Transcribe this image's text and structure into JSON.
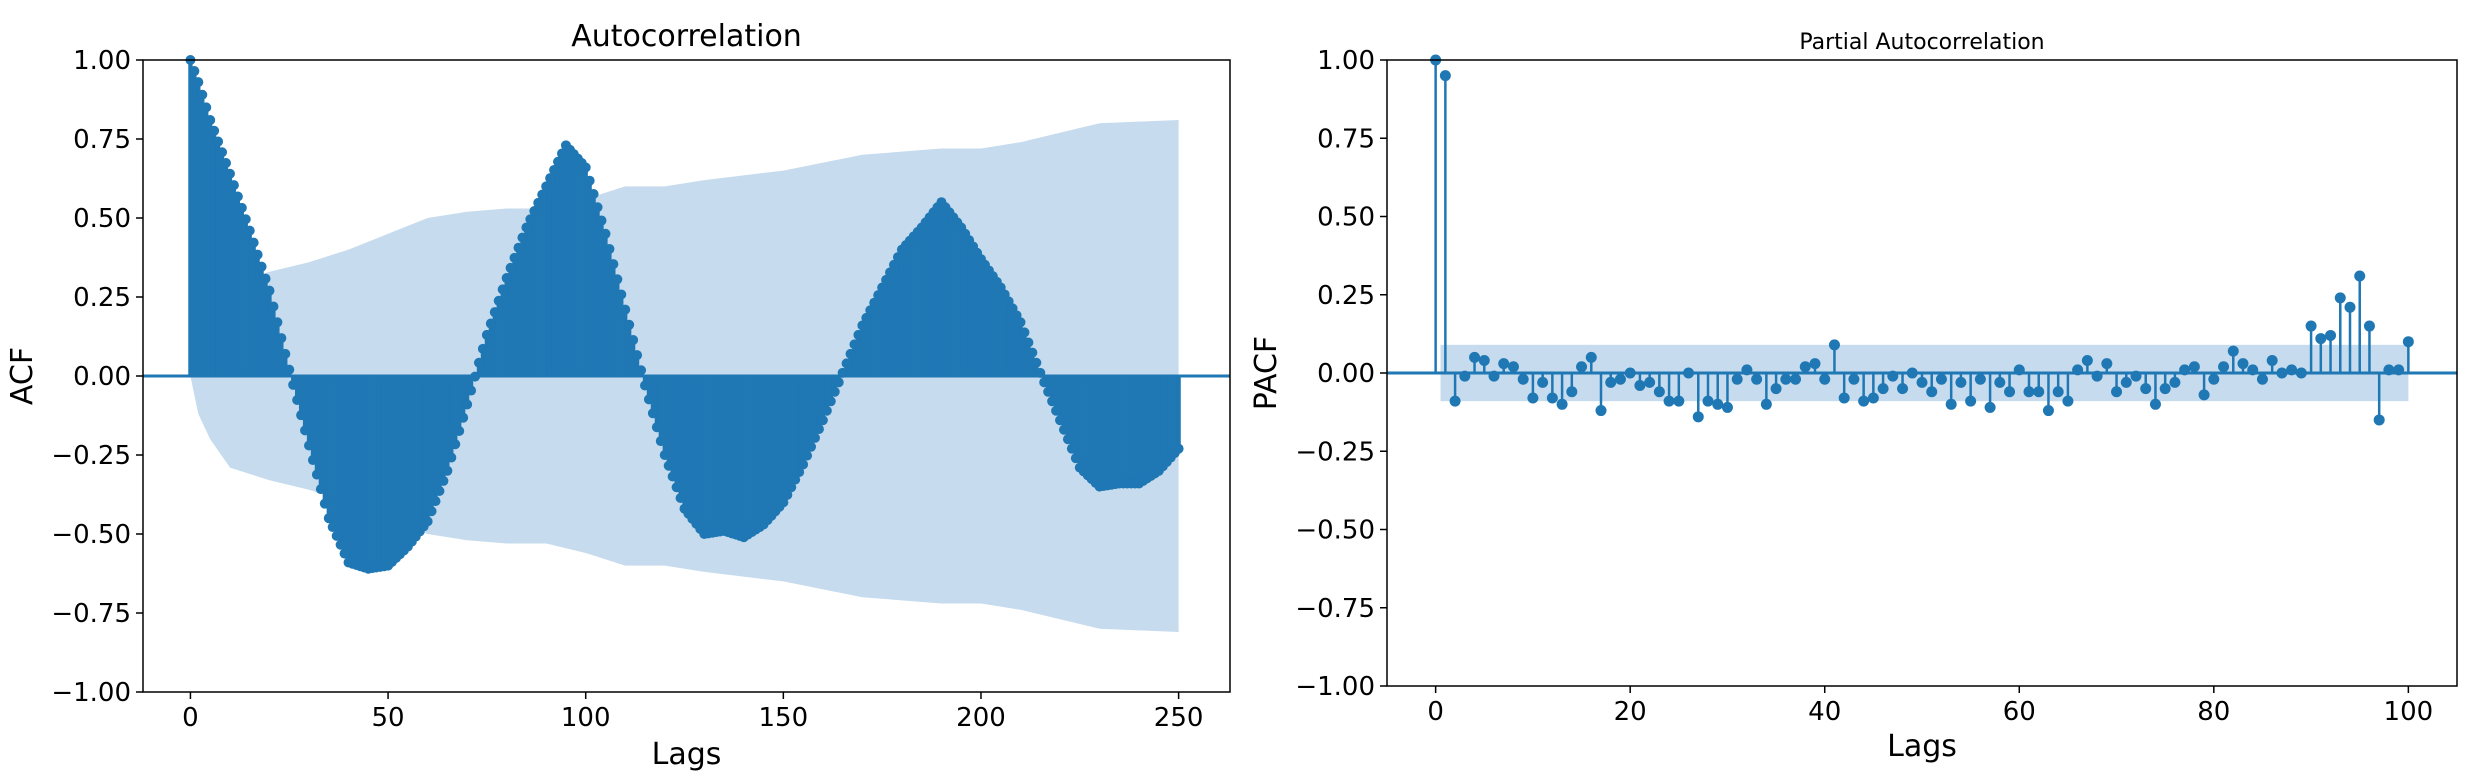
{
  "colors": {
    "primary": "#1f77b4",
    "confidence_band": "#c6dbed",
    "axes": "#000000",
    "background": "#ffffff"
  },
  "chart_data": [
    {
      "type": "stem",
      "title": "Autocorrelation",
      "xlabel": "Lags",
      "ylabel": "ACF",
      "xlim": [
        -12,
        263
      ],
      "ylim": [
        -1.0,
        1.0
      ],
      "x_ticks": [
        0,
        50,
        100,
        150,
        200,
        250
      ],
      "y_ticks": [
        -1.0,
        -0.75,
        -0.5,
        -0.25,
        0.0,
        0.25,
        0.5,
        0.75,
        1.0
      ],
      "x_tick_labels": [
        "0",
        "50",
        "100",
        "150",
        "200",
        "250"
      ],
      "y_tick_labels": [
        "−1.00",
        "−0.75",
        "−0.50",
        "−0.25",
        "0.00",
        "0.25",
        "0.50",
        "0.75",
        "1.00"
      ],
      "grid": false,
      "lag_max": 250,
      "series_keypoints": {
        "lag": [
          0,
          2,
          5,
          10,
          15,
          20,
          25,
          30,
          35,
          40,
          45,
          50,
          55,
          60,
          65,
          70,
          75,
          80,
          85,
          90,
          95,
          100,
          105,
          110,
          115,
          120,
          125,
          130,
          135,
          140,
          145,
          150,
          155,
          160,
          165,
          170,
          175,
          180,
          185,
          190,
          195,
          200,
          205,
          210,
          215,
          220,
          225,
          230,
          235,
          240,
          245,
          250
        ],
        "acf": [
          1.0,
          0.93,
          0.81,
          0.64,
          0.46,
          0.27,
          0.02,
          -0.22,
          -0.45,
          -0.59,
          -0.61,
          -0.6,
          -0.54,
          -0.46,
          -0.3,
          -0.09,
          0.13,
          0.31,
          0.47,
          0.6,
          0.73,
          0.66,
          0.45,
          0.21,
          -0.03,
          -0.25,
          -0.42,
          -0.5,
          -0.49,
          -0.51,
          -0.47,
          -0.4,
          -0.28,
          -0.14,
          0.01,
          0.16,
          0.28,
          0.4,
          0.47,
          0.55,
          0.47,
          0.37,
          0.28,
          0.17,
          0.01,
          -0.14,
          -0.29,
          -0.35,
          -0.34,
          -0.34,
          -0.3,
          -0.23
        ]
      },
      "confidence_band": {
        "lag": [
          0,
          2,
          5,
          10,
          20,
          30,
          40,
          50,
          60,
          70,
          80,
          90,
          100,
          110,
          120,
          130,
          150,
          170,
          190,
          200,
          210,
          230,
          250
        ],
        "upper": [
          0.0,
          0.12,
          0.2,
          0.29,
          0.33,
          0.36,
          0.4,
          0.45,
          0.5,
          0.52,
          0.53,
          0.53,
          0.56,
          0.6,
          0.6,
          0.62,
          0.65,
          0.7,
          0.72,
          0.72,
          0.74,
          0.8,
          0.81
        ]
      },
      "legend": "none"
    },
    {
      "type": "stem",
      "title": "Partial Autocorrelation",
      "xlabel": "Lags",
      "ylabel": "PACF",
      "xlim": [
        -5,
        105
      ],
      "ylim": [
        -1.0,
        1.0
      ],
      "x_ticks": [
        0,
        20,
        40,
        60,
        80,
        100
      ],
      "y_ticks": [
        -1.0,
        -0.75,
        -0.5,
        -0.25,
        0.0,
        0.25,
        0.5,
        0.75,
        1.0
      ],
      "x_tick_labels": [
        "0",
        "20",
        "40",
        "60",
        "80",
        "100"
      ],
      "y_tick_labels": [
        "−1.00",
        "−0.75",
        "−0.50",
        "−0.25",
        "0.00",
        "0.25",
        "0.50",
        "0.75",
        "1.00"
      ],
      "grid": false,
      "x": [
        0,
        1,
        2,
        3,
        4,
        5,
        6,
        7,
        8,
        9,
        10,
        11,
        12,
        13,
        14,
        15,
        16,
        17,
        18,
        19,
        20,
        21,
        22,
        23,
        24,
        25,
        26,
        27,
        28,
        29,
        30,
        31,
        32,
        33,
        34,
        35,
        36,
        37,
        38,
        39,
        40,
        41,
        42,
        43,
        44,
        45,
        46,
        47,
        48,
        49,
        50,
        51,
        52,
        53,
        54,
        55,
        56,
        57,
        58,
        59,
        60,
        61,
        62,
        63,
        64,
        65,
        66,
        67,
        68,
        69,
        70,
        71,
        72,
        73,
        74,
        75,
        76,
        77,
        78,
        79,
        80,
        81,
        82,
        83,
        84,
        85,
        86,
        87,
        88,
        89,
        90,
        91,
        92,
        93,
        94,
        95,
        96,
        97,
        98,
        99,
        100
      ],
      "values": [
        1.0,
        0.95,
        -0.09,
        -0.01,
        0.05,
        0.04,
        -0.01,
        0.03,
        0.02,
        -0.02,
        -0.08,
        -0.03,
        -0.08,
        -0.1,
        -0.06,
        0.02,
        0.05,
        -0.12,
        -0.03,
        -0.02,
        -0.0,
        -0.04,
        -0.03,
        -0.06,
        -0.09,
        -0.09,
        -0.0,
        -0.14,
        -0.09,
        -0.1,
        -0.11,
        -0.02,
        0.01,
        -0.02,
        -0.1,
        -0.05,
        -0.02,
        -0.02,
        0.02,
        0.03,
        -0.02,
        0.09,
        -0.08,
        -0.02,
        -0.09,
        -0.08,
        -0.05,
        -0.01,
        -0.05,
        0.0,
        -0.03,
        -0.06,
        -0.02,
        -0.1,
        -0.03,
        -0.09,
        -0.02,
        -0.11,
        -0.03,
        -0.06,
        0.01,
        -0.06,
        -0.06,
        -0.12,
        -0.06,
        -0.09,
        0.01,
        0.04,
        -0.01,
        0.03,
        -0.06,
        -0.03,
        -0.01,
        -0.05,
        -0.1,
        -0.05,
        -0.03,
        0.01,
        0.02,
        -0.07,
        -0.02,
        0.02,
        0.07,
        0.03,
        0.01,
        -0.02,
        0.04,
        0.0,
        0.01,
        0.0,
        0.15,
        0.11,
        0.12,
        0.24,
        0.21,
        0.31,
        0.15,
        -0.15,
        0.01,
        0.01,
        0.1
      ],
      "confidence_band": {
        "upper": 0.09,
        "lower": -0.09
      },
      "legend": "none"
    }
  ]
}
